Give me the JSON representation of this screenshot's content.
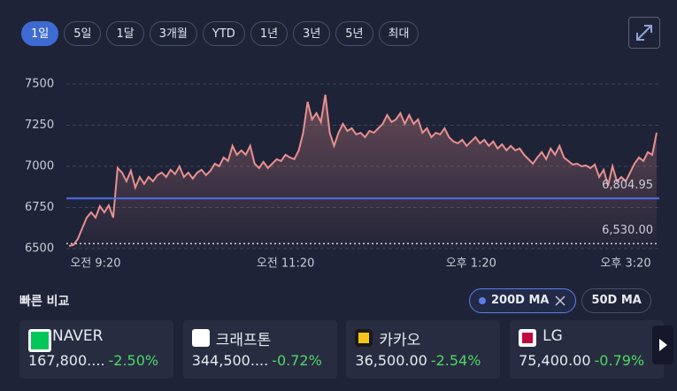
{
  "range_buttons": {
    "items": [
      "1일",
      "5일",
      "1달",
      "3개월",
      "YTD",
      "1년",
      "3년",
      "5년",
      "최대"
    ],
    "selected": 0
  },
  "chart_data": {
    "type": "line",
    "color": "#e8908f",
    "values": [
      6516,
      6522,
      6559,
      6624,
      6688,
      6720,
      6688,
      6758,
      6720,
      6763,
      6688,
      6989,
      6962,
      6909,
      6973,
      6871,
      6935,
      6893,
      6935,
      6909,
      6946,
      6962,
      6935,
      6979,
      6952,
      7000,
      6935,
      6962,
      6925,
      6962,
      6979,
      6946,
      6973,
      7016,
      7000,
      7054,
      7032,
      7124,
      7070,
      7097,
      7070,
      7124,
      7016,
      6989,
      7027,
      6989,
      7016,
      7043,
      7032,
      7070,
      7054,
      7043,
      7097,
      7204,
      7392,
      7285,
      7323,
      7269,
      7435,
      7204,
      7124,
      7204,
      7258,
      7215,
      7231,
      7194,
      7204,
      7177,
      7215,
      7204,
      7231,
      7258,
      7312,
      7269,
      7285,
      7323,
      7258,
      7312,
      7258,
      7285,
      7204,
      7231,
      7177,
      7204,
      7194,
      7231,
      7177,
      7151,
      7140,
      7161,
      7124,
      7151,
      7177,
      7140,
      7161,
      7124,
      7151,
      7108,
      7134,
      7097,
      7124,
      7097,
      7108,
      7070,
      7043,
      7016,
      7054,
      7086,
      7043,
      7108,
      7070,
      7124,
      7054,
      7032,
      7011,
      7016,
      7000,
      7005,
      6989,
      7011,
      6935,
      6979,
      6882,
      7000,
      6909,
      6935,
      6909,
      6962,
      7016,
      7054,
      7032,
      7086,
      7070,
      7204
    ],
    "xlim": [
      0,
      133
    ],
    "xticks": [
      {
        "value": 6,
        "label": "오전 9:20"
      },
      {
        "value": 49,
        "label": "오전 11:20"
      },
      {
        "value": 91,
        "label": "오후 1:20"
      },
      {
        "value": 126,
        "label": "오후 3:20"
      }
    ],
    "ylim": [
      6500,
      7500
    ],
    "yticks": [
      6500,
      6750,
      7000,
      7250,
      7500
    ],
    "grid": true,
    "reference_lines": [
      {
        "value": 6804.95,
        "label": "6,804.95",
        "color": "#4f6fe8",
        "style": "solid"
      },
      {
        "value": 6530,
        "label": "6,530.00",
        "color": "#cfd3df",
        "style": "dotted"
      }
    ]
  },
  "quick_compare": {
    "title": "빠른 비교",
    "toggles": [
      {
        "label": "200D MA",
        "active": true
      },
      {
        "label": "50D MA",
        "active": false
      }
    ],
    "cards": [
      {
        "name": "NAVER",
        "price": "167,800....",
        "change": "-2.50%"
      },
      {
        "name": "크래프톤",
        "price": "344,500....",
        "change": "-0.72%"
      },
      {
        "name": "카카오",
        "price": "36,500.00",
        "change": "-2.54%"
      },
      {
        "name": "LG",
        "price": "75,400.00",
        "change": "-0.79%"
      }
    ]
  }
}
